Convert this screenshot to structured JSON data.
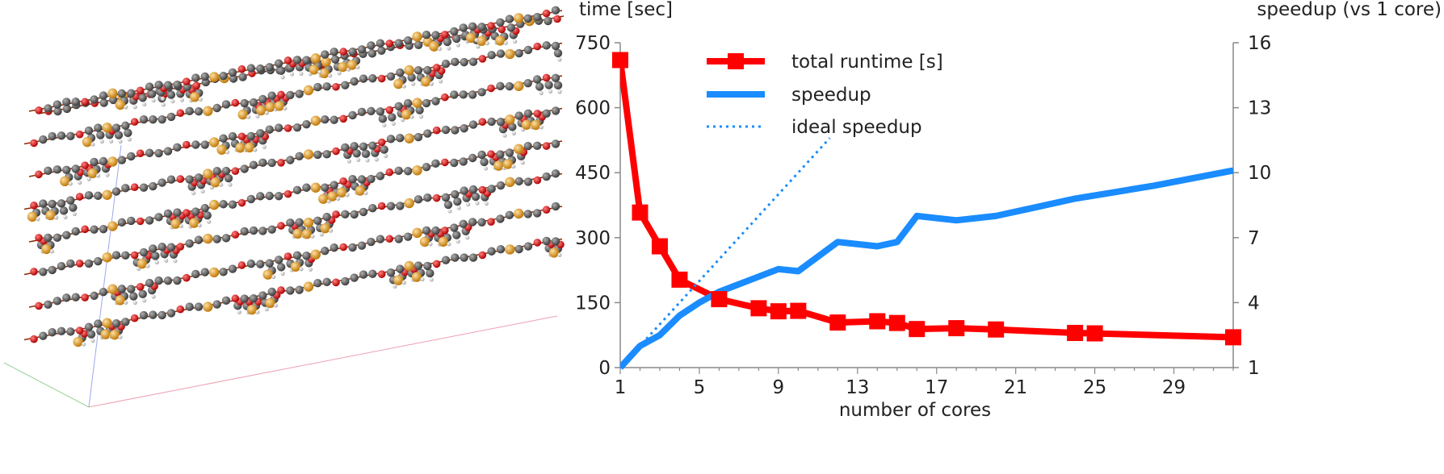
{
  "molecule_panel": {
    "atom_colors": {
      "carbon": "#5a5a5a",
      "oxygen": "#e01818",
      "metal": "#f0a020",
      "hydrogen": "#e8e8e8"
    },
    "axis_colors": {
      "x": "#e05070",
      "y": "#50b050",
      "z": "#5060e0"
    }
  },
  "chart_data": {
    "type": "line",
    "xlabel": "number of cores",
    "ylabel_left": "time [sec]",
    "ylabel_right": "speedup (vs 1 core)",
    "xlim": [
      1,
      32
    ],
    "ylim_left": [
      0,
      750
    ],
    "ylim_right": [
      1,
      16
    ],
    "xticks": [
      1,
      5,
      9,
      13,
      17,
      21,
      25,
      29
    ],
    "yticks_left": [
      0,
      150,
      300,
      450,
      600,
      750
    ],
    "yticks_right": [
      1,
      4,
      7,
      10,
      13,
      16
    ],
    "grid": false,
    "legend_placement": "top-left",
    "series": [
      {
        "name": "total runtime [s]",
        "axis": "left",
        "color": "#ff0000",
        "style": "solid-with-square-markers",
        "x": [
          1,
          2,
          3,
          4,
          6,
          8,
          9,
          10,
          12,
          14,
          15,
          16,
          18,
          20,
          24,
          25,
          32
        ],
        "y": [
          710,
          358,
          280,
          203,
          158,
          137,
          130,
          131,
          104,
          107,
          103,
          89,
          91,
          88,
          80,
          79,
          70
        ]
      },
      {
        "name": "speedup",
        "axis": "right",
        "color": "#1a8cff",
        "style": "solid",
        "x": [
          1,
          2,
          3,
          4,
          5,
          6,
          7,
          8,
          9,
          10,
          12,
          14,
          15,
          16,
          18,
          20,
          22,
          24,
          26,
          28,
          32
        ],
        "y": [
          1.0,
          2.0,
          2.5,
          3.4,
          4.0,
          4.5,
          4.85,
          5.2,
          5.55,
          5.45,
          6.8,
          6.6,
          6.8,
          8.0,
          7.8,
          8.0,
          8.4,
          8.8,
          9.1,
          9.4,
          10.1
        ]
      },
      {
        "name": "ideal speedup",
        "axis": "right",
        "color": "#1a8cff",
        "style": "dotted",
        "x": [
          1,
          11.6
        ],
        "y": [
          1.0,
          11.6
        ]
      }
    ]
  }
}
